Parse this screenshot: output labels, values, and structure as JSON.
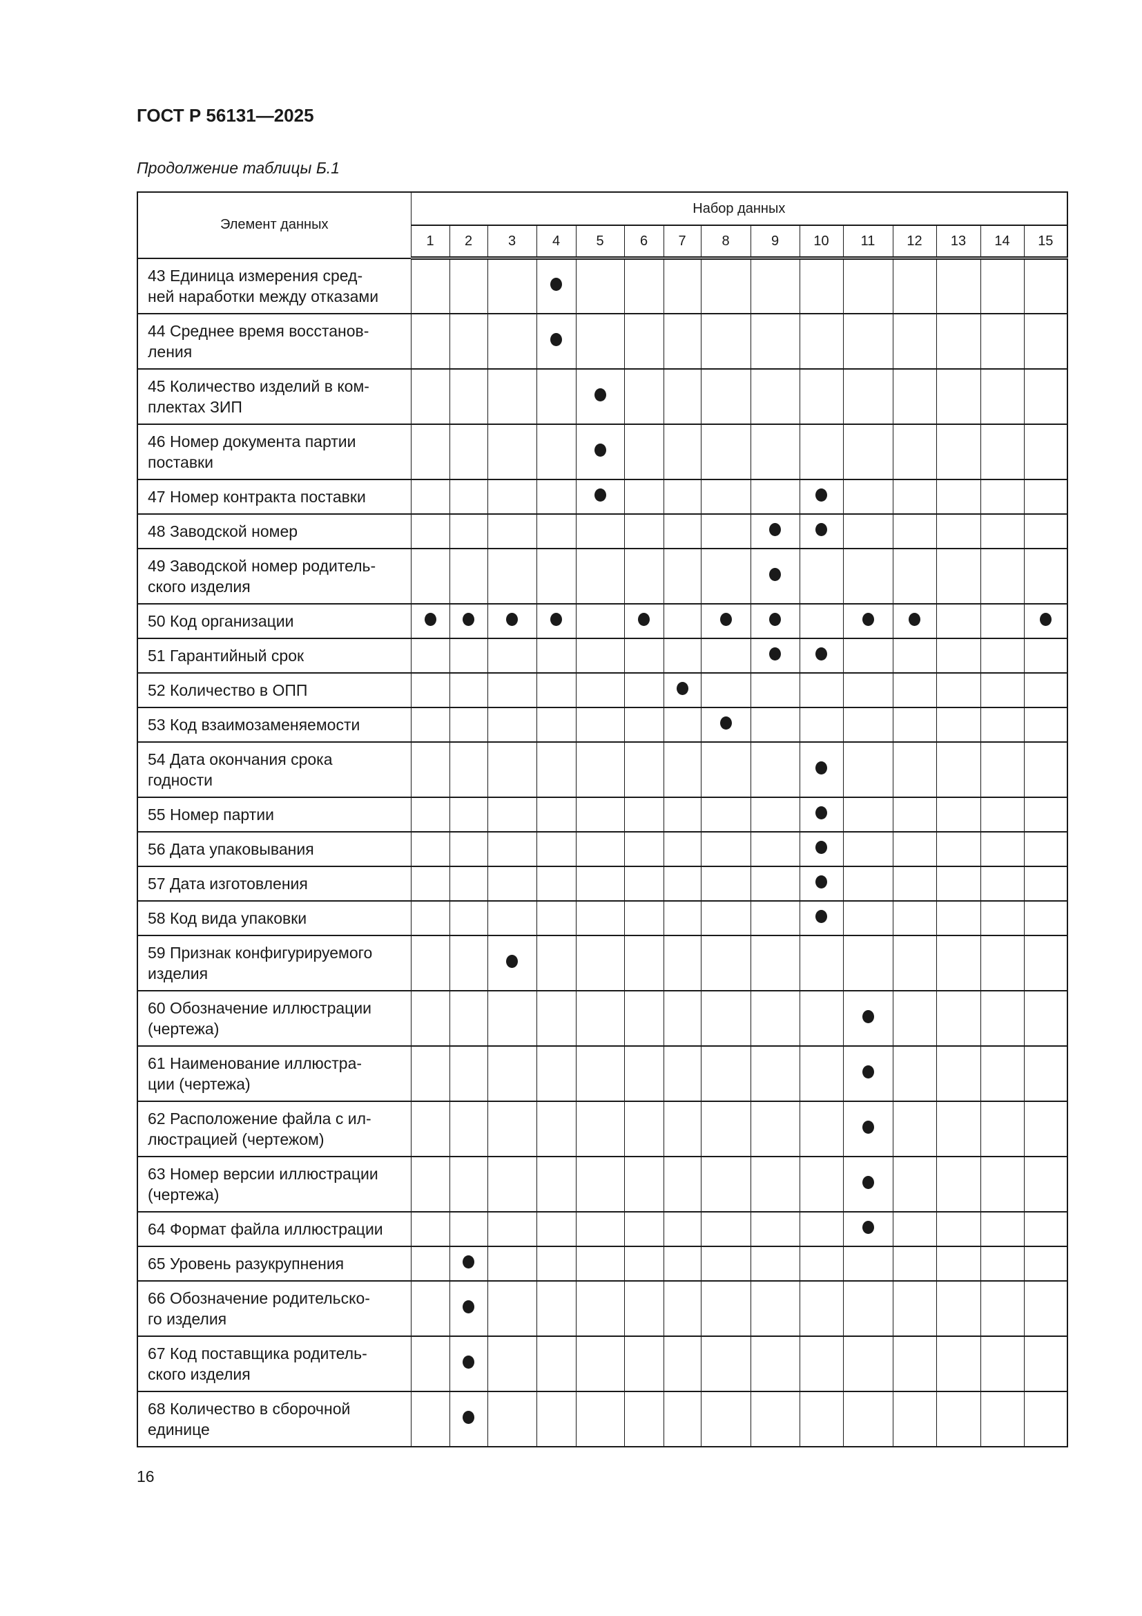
{
  "header": {
    "doc_id": "ГОСТ Р 56131—2025",
    "caption": "Продолжение таблицы Б.1"
  },
  "table": {
    "col_element": "Элемент данных",
    "col_group": "Набор данных",
    "set_numbers": [
      "1",
      "2",
      "3",
      "4",
      "5",
      "6",
      "7",
      "8",
      "9",
      "10",
      "11",
      "12",
      "13",
      "14",
      "15"
    ],
    "mark_icon": "filled-circle",
    "rows": [
      {
        "label": "43 Единица измерения сред-\nней наработки между отказами",
        "marks": [
          4
        ]
      },
      {
        "label": "44 Среднее время восстанов-\nления",
        "marks": [
          4
        ]
      },
      {
        "label": "45 Количество изделий в ком-\nплектах ЗИП",
        "marks": [
          5
        ]
      },
      {
        "label": "46 Номер документа партии\nпоставки",
        "marks": [
          5
        ]
      },
      {
        "label": "47 Номер контракта поставки",
        "marks": [
          5,
          10
        ]
      },
      {
        "label": "48 Заводской номер",
        "marks": [
          9,
          10
        ]
      },
      {
        "label": "49 Заводской номер родитель-\nского изделия",
        "marks": [
          9
        ]
      },
      {
        "label": "50 Код организации",
        "marks": [
          1,
          2,
          3,
          4,
          6,
          8,
          9,
          11,
          12,
          15
        ]
      },
      {
        "label": "51 Гарантийный срок",
        "marks": [
          9,
          10
        ]
      },
      {
        "label": "52 Количество в ОПП",
        "marks": [
          7
        ]
      },
      {
        "label": "53 Код взаимозаменяемости",
        "marks": [
          8
        ]
      },
      {
        "label": "54 Дата окончания срока\nгодности",
        "marks": [
          10
        ]
      },
      {
        "label": "55 Номер партии",
        "marks": [
          10
        ]
      },
      {
        "label": "56 Дата упаковывания",
        "marks": [
          10
        ]
      },
      {
        "label": "57 Дата изготовления",
        "marks": [
          10
        ]
      },
      {
        "label": "58 Код вида упаковки",
        "marks": [
          10
        ]
      },
      {
        "label": "59 Признак конфигурируемого\nизделия",
        "marks": [
          3
        ]
      },
      {
        "label": "60 Обозначение иллюстрации\n(чертежа)",
        "marks": [
          11
        ]
      },
      {
        "label": "61 Наименование иллюстра-\nции (чертежа)",
        "marks": [
          11
        ]
      },
      {
        "label": "62 Расположение файла с ил-\nлюстрацией (чертежом)",
        "marks": [
          11
        ]
      },
      {
        "label": "63 Номер версии иллюстрации\n(чертежа)",
        "marks": [
          11
        ]
      },
      {
        "label": "64 Формат файла иллюстрации",
        "marks": [
          11
        ]
      },
      {
        "label": "65 Уровень разукрупнения",
        "marks": [
          2
        ]
      },
      {
        "label": "66 Обозначение родительско-\nго изделия",
        "marks": [
          2
        ]
      },
      {
        "label": "67 Код поставщика родитель-\nского изделия",
        "marks": [
          2
        ]
      },
      {
        "label": "68 Количество в сборочной\nединице",
        "marks": [
          2
        ]
      }
    ]
  },
  "footer": {
    "page_number": "16"
  }
}
